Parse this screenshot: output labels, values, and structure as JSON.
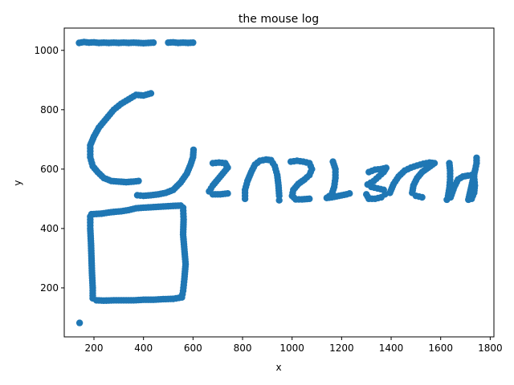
{
  "chart_data": {
    "type": "scatter",
    "title": "the mouse log",
    "xlabel": "x",
    "ylabel": "y",
    "xlim": [
      80,
      1815
    ],
    "ylim": [
      35,
      1075
    ],
    "xticks": [
      200,
      400,
      600,
      800,
      1000,
      1200,
      1400,
      1600,
      1800
    ],
    "yticks": [
      200,
      400,
      600,
      800,
      1000
    ],
    "grid": false,
    "legend": "none",
    "marker_color": "#1f77b4",
    "strokes": [
      [
        [
          140,
          1025
        ],
        [
          160,
          1028
        ],
        [
          180,
          1026
        ],
        [
          200,
          1027
        ],
        [
          220,
          1025
        ],
        [
          240,
          1026
        ],
        [
          260,
          1025
        ],
        [
          280,
          1026
        ],
        [
          300,
          1025
        ],
        [
          320,
          1026
        ],
        [
          340,
          1025
        ],
        [
          360,
          1026
        ],
        [
          380,
          1025
        ],
        [
          400,
          1024
        ],
        [
          420,
          1025
        ],
        [
          440,
          1026
        ]
      ],
      [
        [
          500,
          1026
        ],
        [
          520,
          1027
        ],
        [
          540,
          1025
        ],
        [
          560,
          1026
        ],
        [
          580,
          1025
        ],
        [
          600,
          1026
        ]
      ],
      [
        [
          430,
          855
        ],
        [
          400,
          848
        ],
        [
          370,
          850
        ],
        [
          340,
          835
        ],
        [
          310,
          820
        ],
        [
          280,
          800
        ],
        [
          250,
          770
        ],
        [
          220,
          740
        ],
        [
          200,
          710
        ],
        [
          185,
          680
        ],
        [
          185,
          640
        ],
        [
          195,
          610
        ],
        [
          215,
          590
        ],
        [
          240,
          570
        ],
        [
          270,
          560
        ],
        [
          300,
          558
        ],
        [
          330,
          556
        ],
        [
          360,
          558
        ],
        [
          380,
          560
        ]
      ],
      [
        [
          375,
          512
        ],
        [
          400,
          510
        ],
        [
          430,
          512
        ],
        [
          460,
          515
        ],
        [
          490,
          520
        ],
        [
          520,
          530
        ],
        [
          550,
          555
        ],
        [
          575,
          585
        ],
        [
          590,
          615
        ],
        [
          600,
          640
        ],
        [
          602,
          665
        ]
      ],
      [
        [
          142,
          82
        ]
      ],
      [
        [
          190,
          448
        ],
        [
          230,
          450
        ],
        [
          270,
          455
        ],
        [
          310,
          458
        ],
        [
          340,
          462
        ],
        [
          370,
          468
        ],
        [
          400,
          470
        ],
        [
          440,
          472
        ],
        [
          480,
          474
        ],
        [
          520,
          476
        ],
        [
          550,
          477
        ],
        [
          560,
          470
        ],
        [
          562,
          430
        ],
        [
          560,
          380
        ],
        [
          565,
          330
        ],
        [
          570,
          280
        ],
        [
          565,
          230
        ],
        [
          560,
          190
        ],
        [
          555,
          168
        ],
        [
          520,
          163
        ],
        [
          480,
          162
        ],
        [
          440,
          160
        ],
        [
          400,
          160
        ],
        [
          360,
          158
        ],
        [
          320,
          158
        ],
        [
          280,
          158
        ],
        [
          240,
          157
        ],
        [
          210,
          158
        ],
        [
          195,
          165
        ],
        [
          195,
          200
        ],
        [
          192,
          250
        ],
        [
          190,
          300
        ],
        [
          188,
          350
        ],
        [
          185,
          400
        ],
        [
          185,
          440
        ]
      ],
      [
        [
          680,
          620
        ],
        [
          705,
          622
        ],
        [
          730,
          620
        ],
        [
          740,
          605
        ],
        [
          720,
          585
        ],
        [
          700,
          565
        ],
        [
          680,
          545
        ],
        [
          665,
          525
        ],
        [
          680,
          515
        ],
        [
          710,
          515
        ],
        [
          740,
          518
        ]
      ],
      [
        [
          810,
          500
        ],
        [
          810,
          530
        ],
        [
          820,
          560
        ],
        [
          835,
          590
        ],
        [
          850,
          615
        ],
        [
          870,
          628
        ],
        [
          895,
          632
        ],
        [
          915,
          630
        ],
        [
          930,
          610
        ],
        [
          940,
          580
        ],
        [
          945,
          545
        ],
        [
          948,
          510
        ],
        [
          948,
          495
        ]
      ],
      [
        [
          995,
          625
        ],
        [
          1020,
          628
        ],
        [
          1045,
          625
        ],
        [
          1070,
          620
        ],
        [
          1080,
          600
        ],
        [
          1070,
          580
        ],
        [
          1050,
          565
        ],
        [
          1025,
          550
        ],
        [
          1005,
          530
        ],
        [
          1000,
          510
        ],
        [
          1015,
          498
        ],
        [
          1040,
          498
        ],
        [
          1070,
          500
        ]
      ],
      [
        [
          1165,
          625
        ],
        [
          1175,
          600
        ],
        [
          1175,
          570
        ],
        [
          1170,
          540
        ],
        [
          1160,
          515
        ],
        [
          1140,
          503
        ],
        [
          1160,
          505
        ],
        [
          1190,
          510
        ],
        [
          1220,
          515
        ],
        [
          1232,
          518
        ]
      ],
      [
        [
          1310,
          590
        ],
        [
          1335,
          598
        ],
        [
          1360,
          600
        ],
        [
          1380,
          604
        ],
        [
          1370,
          590
        ],
        [
          1350,
          575
        ],
        [
          1330,
          560
        ],
        [
          1305,
          548
        ],
        [
          1320,
          540
        ],
        [
          1345,
          535
        ],
        [
          1370,
          530
        ],
        [
          1375,
          515
        ],
        [
          1360,
          505
        ],
        [
          1335,
          500
        ],
        [
          1310,
          500
        ],
        [
          1300,
          515
        ]
      ],
      [
        [
          1395,
          520
        ],
        [
          1410,
          550
        ],
        [
          1430,
          575
        ],
        [
          1455,
          595
        ],
        [
          1480,
          605
        ],
        [
          1505,
          612
        ],
        [
          1530,
          618
        ],
        [
          1555,
          622
        ],
        [
          1575,
          620
        ],
        [
          1550,
          605
        ],
        [
          1525,
          590
        ],
        [
          1505,
          570
        ],
        [
          1490,
          545
        ],
        [
          1485,
          520
        ],
        [
          1500,
          510
        ],
        [
          1525,
          505
        ]
      ],
      [
        [
          1635,
          620
        ],
        [
          1638,
          595
        ],
        [
          1638,
          565
        ],
        [
          1635,
          535
        ],
        [
          1630,
          510
        ],
        [
          1625,
          497
        ],
        [
          1640,
          505
        ],
        [
          1655,
          540
        ],
        [
          1670,
          565
        ],
        [
          1690,
          575
        ],
        [
          1710,
          578
        ],
        [
          1725,
          580
        ],
        [
          1735,
          575
        ],
        [
          1738,
          545
        ],
        [
          1735,
          520
        ],
        [
          1725,
          500
        ],
        [
          1712,
          497
        ],
        [
          1740,
          600
        ],
        [
          1745,
          620
        ],
        [
          1745,
          638
        ]
      ]
    ]
  }
}
